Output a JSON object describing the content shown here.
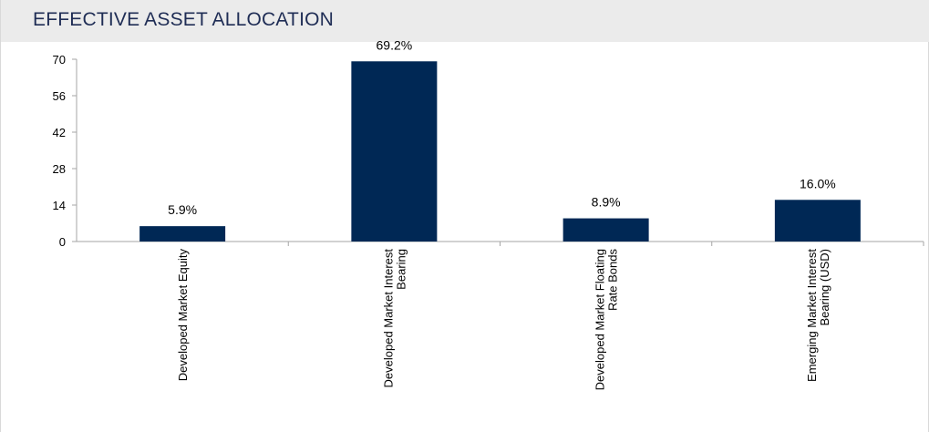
{
  "page": {
    "title": "EFFECTIVE ASSET ALLOCATION"
  },
  "colors": {
    "bar": "#002855",
    "axis": "#a6a6a6",
    "title": "#1f2d55",
    "title_bar": "#ebebeb"
  },
  "chart_data": {
    "type": "bar",
    "title": "EFFECTIVE ASSET ALLOCATION",
    "categories": [
      [
        "Developed Market Equity"
      ],
      [
        "Developed Market Interest",
        "Bearing"
      ],
      [
        "Developed Market Floating",
        "Rate Bonds"
      ],
      [
        "Emerging Market Interest",
        "Bearing (USD)"
      ]
    ],
    "values": [
      5.9,
      69.2,
      8.9,
      16.0
    ],
    "data_labels": [
      "5.9%",
      "69.2%",
      "8.9%",
      "16.0%"
    ],
    "yticks": [
      0,
      14,
      28,
      42,
      56,
      70
    ],
    "ylim": [
      0,
      70
    ],
    "grid": false,
    "legend": "none",
    "xlabel": "",
    "ylabel": ""
  }
}
